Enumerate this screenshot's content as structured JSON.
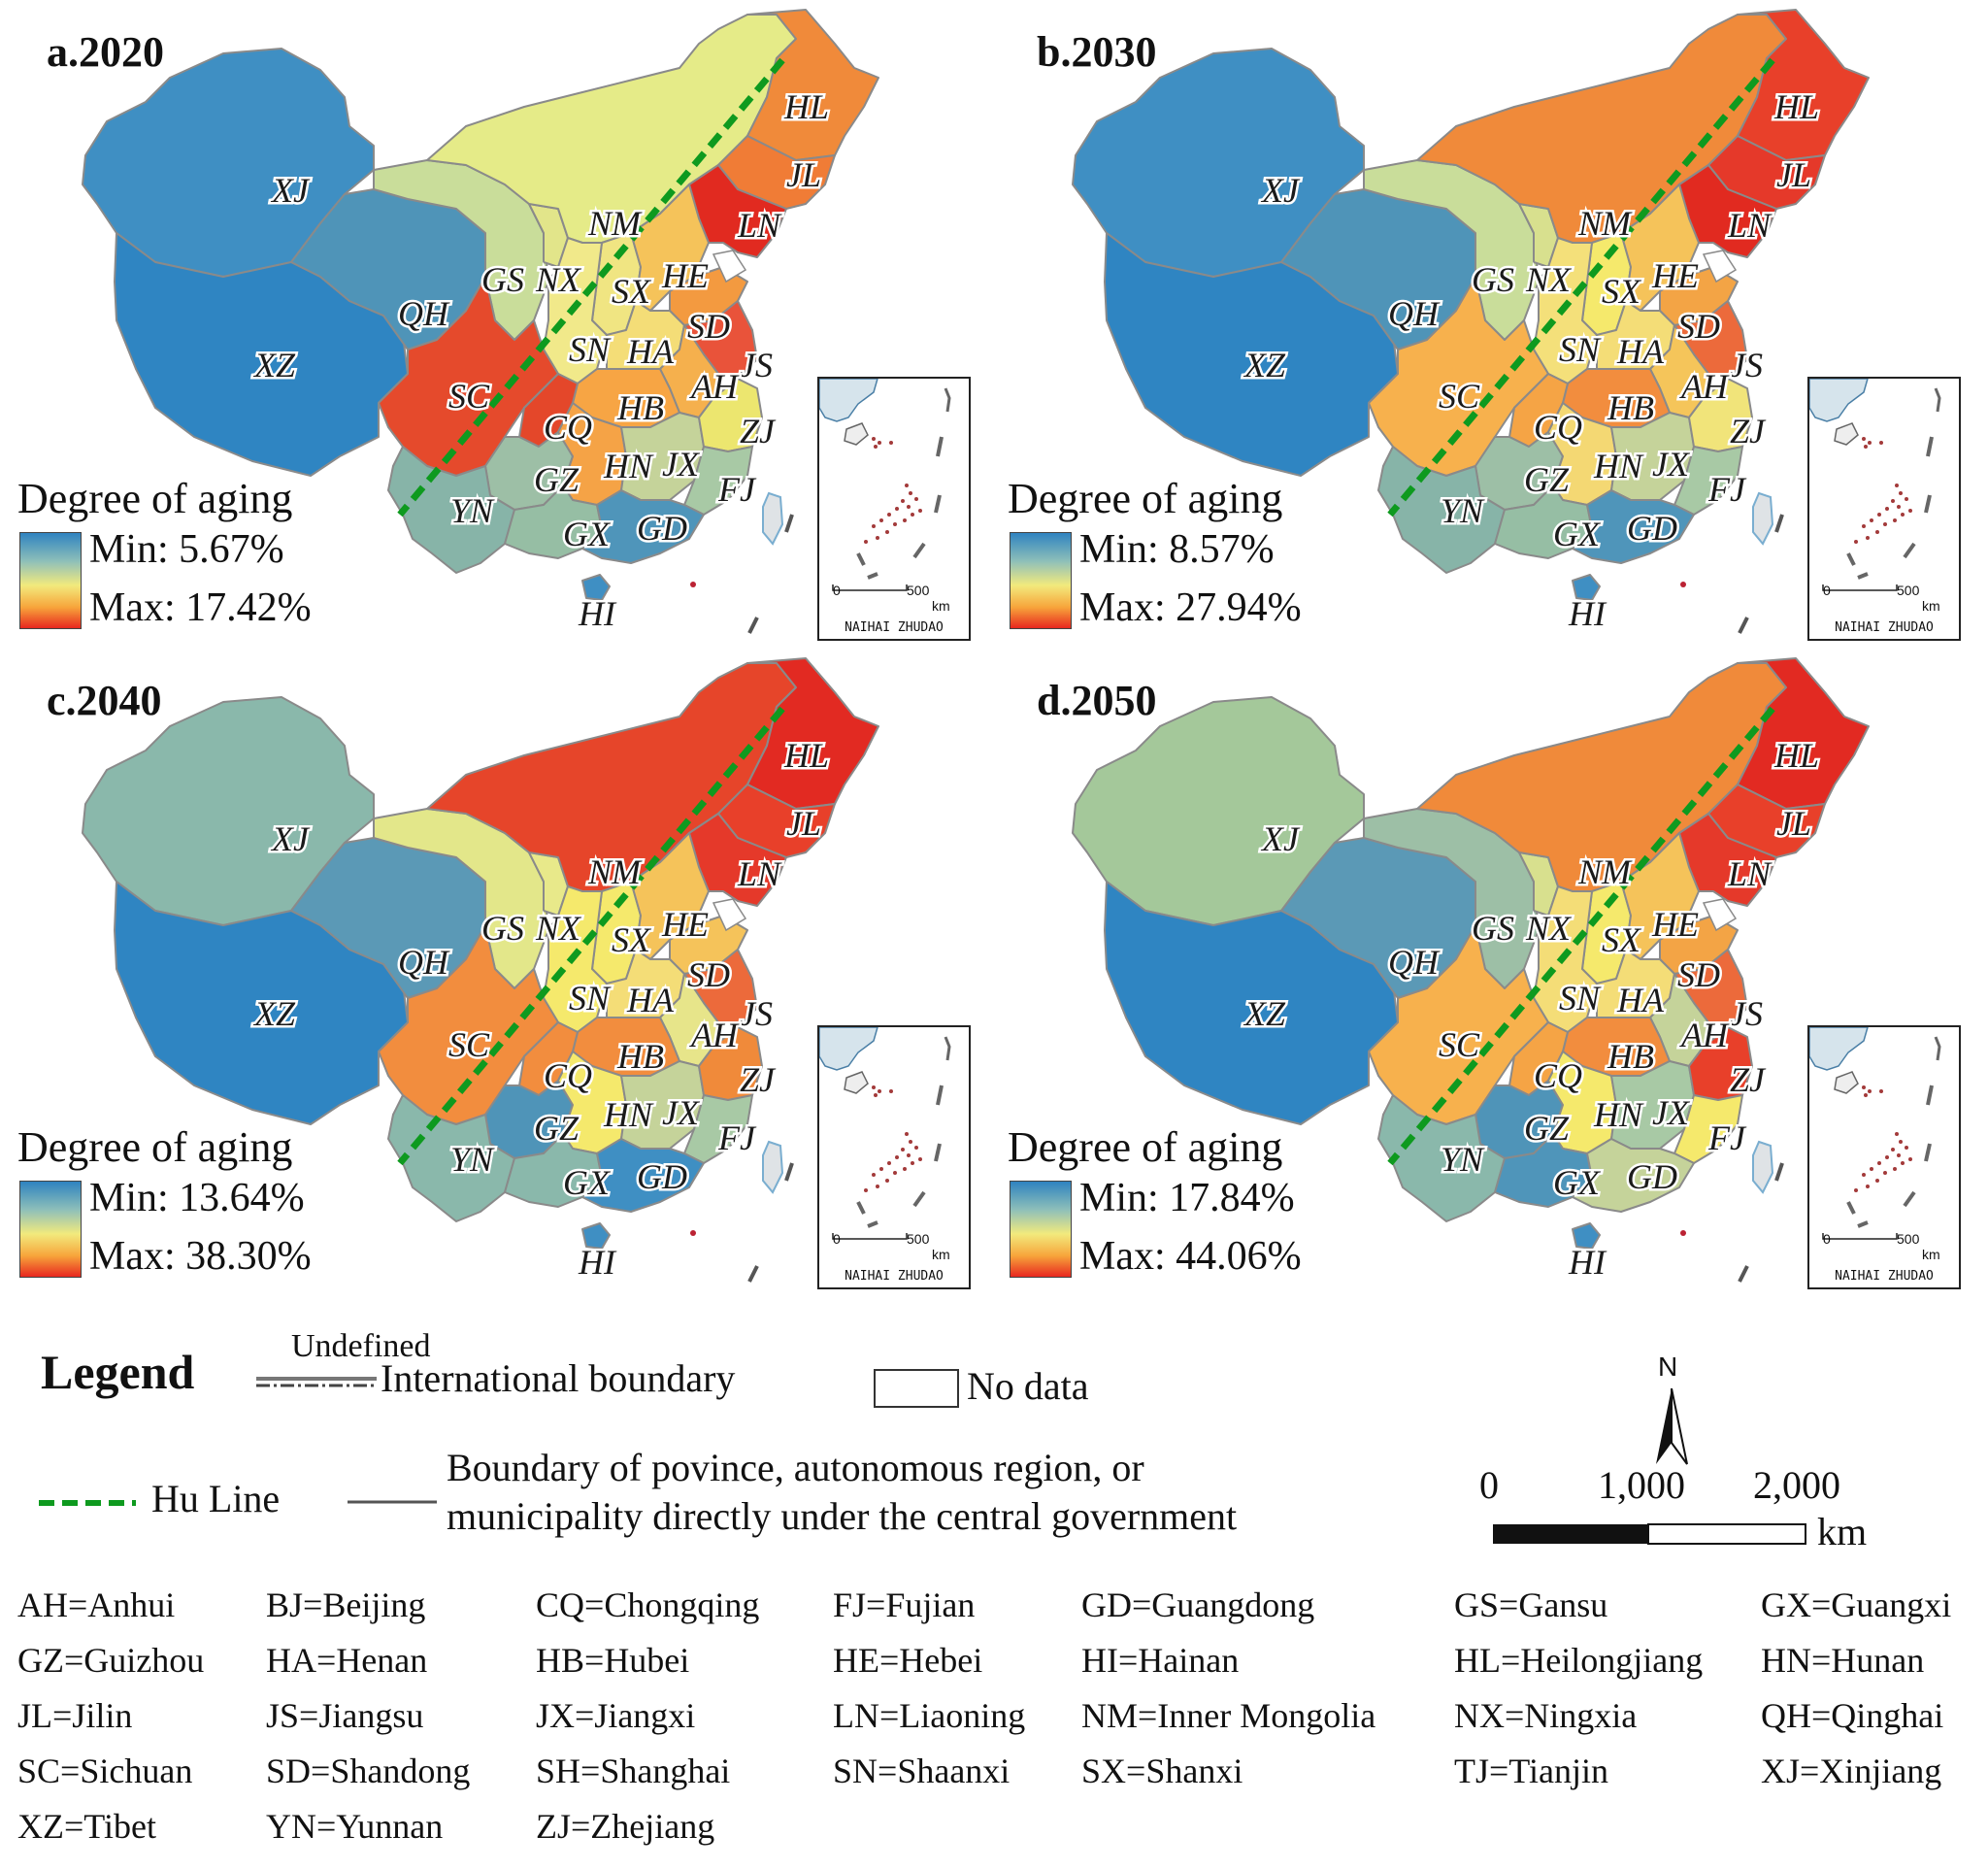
{
  "panels": [
    {
      "title": "a.2020",
      "legend_title": "Degree of aging",
      "min": "Min: 5.67%",
      "max": "Max: 17.42%",
      "colors": {
        "XJ": "#3f8fc3",
        "XZ": "#2f85c2",
        "QH": "#4f94b8",
        "GS": "#c9dd9a",
        "NX": "#e2e58a",
        "NM": "#e5eb88",
        "HL": "#f08a3a",
        "JL": "#f07c36",
        "LN": "#e12a20",
        "SN": "#f1e98a",
        "SX": "#f0e582",
        "HE": "#f5c35a",
        "SD": "#f39a40",
        "HA": "#f4dd77",
        "JS": "#e9533a",
        "AH": "#f5b04d",
        "HB": "#f7a544",
        "SC": "#e54a2c",
        "CQ": "#e4472a",
        "GZ": "#9dbfa6",
        "HN": "#f5a346",
        "JX": "#c5d39a",
        "ZJ": "#ece66f",
        "FJ": "#a8c9a5",
        "YN": "#87b4a8",
        "GX": "#96bea4",
        "GD": "#4f95ba",
        "HI": "#3f8fc3"
      }
    },
    {
      "title": "b.2030",
      "legend_title": "Degree of aging",
      "min": "Min: 8.57%",
      "max": "Max: 27.94%",
      "colors": {
        "XJ": "#3f8fc3",
        "XZ": "#2f85c2",
        "QH": "#4f94b8",
        "GS": "#c9dd9a",
        "NX": "#d8e08e",
        "NM": "#f08a3a",
        "HL": "#e8402a",
        "JL": "#e5392a",
        "LN": "#e12a20",
        "SN": "#f4e07a",
        "SX": "#f5e96c",
        "HE": "#f5c35a",
        "SD": "#f3a445",
        "HA": "#f4dd77",
        "JS": "#ec6a3b",
        "AH": "#f5c55a",
        "HB": "#f28d3e",
        "SC": "#f7b14d",
        "CQ": "#f5a445",
        "GZ": "#9dbfa6",
        "HN": "#f4d873",
        "JX": "#c5d39a",
        "ZJ": "#f1e47a",
        "FJ": "#a8c9a5",
        "YN": "#87b4a8",
        "GX": "#96bea4",
        "GD": "#4f95ba",
        "HI": "#3f8fc3"
      }
    },
    {
      "title": "c.2040",
      "legend_title": "Degree of aging",
      "min": "Min: 13.64%",
      "max": "Max: 38.30%",
      "colors": {
        "XJ": "#8ab8ab",
        "XZ": "#2f85c2",
        "QH": "#5b99b6",
        "GS": "#e3e78a",
        "NX": "#e8e98a",
        "NM": "#e6452a",
        "HL": "#e22a22",
        "JL": "#e8402a",
        "LN": "#e5392a",
        "SN": "#f5e96c",
        "SX": "#f5e96c",
        "HE": "#f5c35a",
        "SD": "#f5c35a",
        "HA": "#f4dd77",
        "JS": "#ec6a3b",
        "AH": "#e7e58a",
        "HB": "#f28d3e",
        "SC": "#f28d3e",
        "CQ": "#f28d3e",
        "GZ": "#4f94b8",
        "HN": "#f5e96c",
        "JX": "#c5d39a",
        "ZJ": "#f08a3a",
        "FJ": "#a8c9a5",
        "YN": "#8ab8ab",
        "GX": "#8ab8ab",
        "GD": "#3f8fc3",
        "HI": "#3f8fc3"
      }
    },
    {
      "title": "d.2050",
      "legend_title": "Degree of aging",
      "min": "Min: 17.84%",
      "max": "Max: 44.06%",
      "colors": {
        "XJ": "#a4c89a",
        "XZ": "#2f85c2",
        "QH": "#5b99b6",
        "GS": "#9dbfa6",
        "NX": "#d8e08e",
        "NM": "#f08a3a",
        "HL": "#e22a22",
        "JL": "#e8402a",
        "LN": "#e5392a",
        "SN": "#f4dd77",
        "SX": "#f5e96c",
        "HE": "#f5c35a",
        "SD": "#f3a445",
        "HA": "#f4dd77",
        "JS": "#ec6a3b",
        "AH": "#c5d39a",
        "HB": "#f28d3e",
        "SC": "#f7b14d",
        "CQ": "#f5a445",
        "GZ": "#4f94b8",
        "HN": "#f5e96c",
        "JX": "#a8c9a5",
        "ZJ": "#e8402a",
        "FJ": "#f5e96c",
        "YN": "#8ab8ab",
        "GX": "#4f95ba",
        "GD": "#c5d39a",
        "HI": "#3f8fc3"
      }
    }
  ],
  "inset": {
    "label": "NAIHAI ZHUDAO",
    "scale_start": "0",
    "scale_end": "500",
    "unit": "km"
  },
  "legend": {
    "title": "Legend",
    "undefined": "Undefined",
    "international": "International boundary",
    "no_data": "No data",
    "hu_line": "Hu Line",
    "province_line1": "Boundary of povince, autonomous region, or",
    "province_line2": "municipality directly under the central government",
    "north": "N",
    "scale_0": "0",
    "scale_1": "1,000",
    "scale_2": "2,000",
    "scale_unit": "km"
  },
  "abbreviations": [
    "AH=Anhui",
    "BJ=Beijing",
    "CQ=Chongqing",
    "FJ=Fujian",
    "GD=Guangdong",
    "GS=Gansu",
    "GX=Guangxi",
    "GZ=Guizhou",
    "HA=Henan",
    "HB=Hubei",
    "HE=Hebei",
    "HI=Hainan",
    "HL=Heilongjiang",
    "HN=Hunan",
    "JL=Jilin",
    "JS=Jiangsu",
    "JX=Jiangxi",
    "LN=Liaoning",
    "NM=Inner Mongolia",
    "NX=Ningxia",
    "QH=Qinghai",
    "SC=Sichuan",
    "SD=Shandong",
    "SH=Shanghai",
    "SN=Shaanxi",
    "SX=Shanxi",
    "TJ=Tianjin",
    "XJ=Xinjiang",
    "XZ=Tibet",
    "YN=Yunnan",
    "ZJ=Zhejiang"
  ]
}
